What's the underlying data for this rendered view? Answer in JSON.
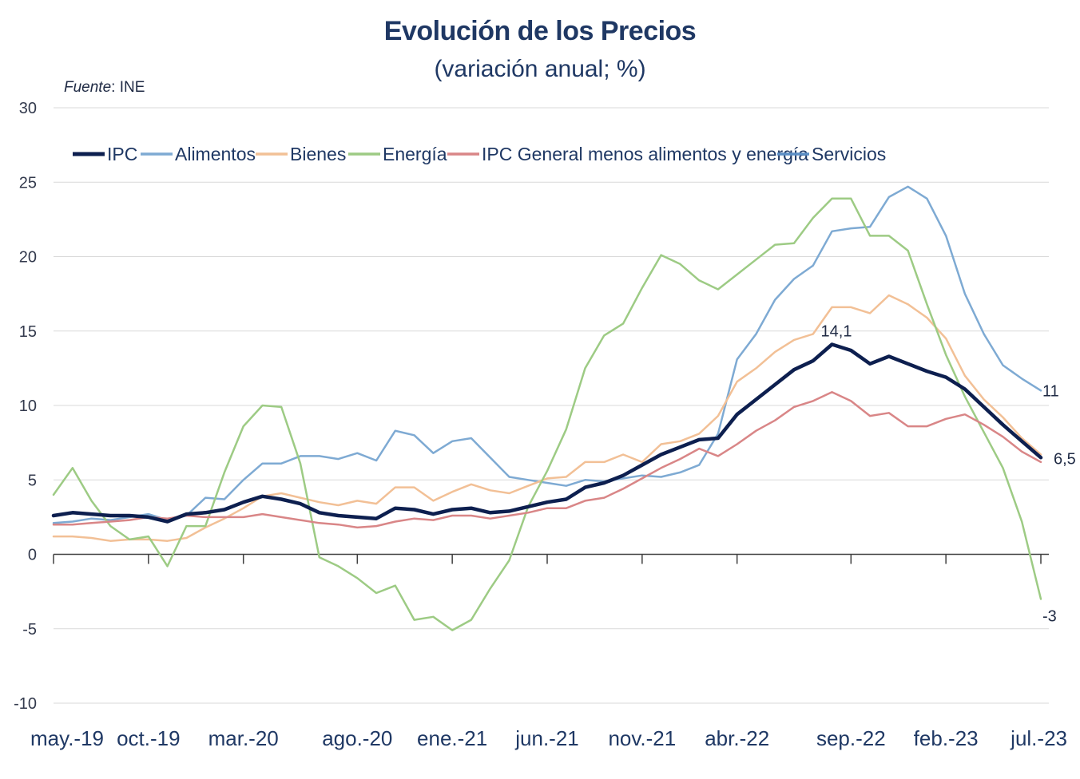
{
  "chart_data": {
    "type": "line",
    "title": "Evolución de los Precios",
    "subtitle": "(variación anual; %)",
    "source_label": "Fuente",
    "source_value": ": INE",
    "ylim": [
      -10,
      30
    ],
    "yticks": [
      -10,
      -5,
      0,
      5,
      10,
      15,
      20,
      25,
      30
    ],
    "grid": true,
    "legend_position": "top",
    "x_tick_labels": [
      "may.-19",
      "oct.-19",
      "mar.-20",
      "ago.-20",
      "ene.-21",
      "jun.-21",
      "nov.-21",
      "abr.-22",
      "sep.-22",
      "feb.-23",
      "jul.-23"
    ],
    "series": [
      {
        "name": "IPC",
        "color": "#0d1f4f",
        "width": 4.5,
        "values": [
          2.6,
          2.8,
          2.7,
          2.6,
          2.6,
          2.5,
          2.2,
          2.7,
          2.8,
          3.0,
          3.5,
          3.9,
          3.7,
          3.4,
          2.8,
          2.6,
          2.5,
          2.4,
          3.1,
          3.0,
          2.7,
          3.0,
          3.1,
          2.8,
          2.9,
          3.2,
          3.5,
          3.7,
          4.5,
          4.8,
          5.3,
          6.0,
          6.7,
          7.2,
          7.7,
          7.8,
          9.4,
          10.4,
          11.4,
          12.4,
          13.0,
          14.1,
          13.7,
          12.8,
          13.3,
          12.8,
          12.3,
          11.9,
          11.1,
          9.9,
          8.7,
          7.6,
          6.5
        ]
      },
      {
        "name": "Alimentos",
        "color": "#7eaad3",
        "width": 2.5,
        "values": [
          2.1,
          2.2,
          2.4,
          2.3,
          2.5,
          2.7,
          2.3,
          2.6,
          3.8,
          3.7,
          5.0,
          6.1,
          6.1,
          6.6,
          6.6,
          6.4,
          6.8,
          6.3,
          8.3,
          8.0,
          6.8,
          7.6,
          7.8,
          6.5,
          5.2,
          5.0,
          4.8,
          4.6,
          5.0,
          4.9,
          5.1,
          5.3,
          5.2,
          5.5,
          6.0,
          8.1,
          13.1,
          14.8,
          17.1,
          18.5,
          19.4,
          21.7,
          21.9,
          22.0,
          24.0,
          24.7,
          23.9,
          21.4,
          17.5,
          14.8,
          12.7,
          11.8,
          11.0
        ]
      },
      {
        "name": "Bienes",
        "color": "#f2c096",
        "width": 2.5,
        "values": [
          1.2,
          1.2,
          1.1,
          0.9,
          1.0,
          1.0,
          0.9,
          1.1,
          1.8,
          2.4,
          3.1,
          3.9,
          4.1,
          3.8,
          3.5,
          3.3,
          3.6,
          3.4,
          4.5,
          4.5,
          3.6,
          4.2,
          4.7,
          4.3,
          4.1,
          4.6,
          5.1,
          5.2,
          6.2,
          6.2,
          6.7,
          6.2,
          7.4,
          7.6,
          8.1,
          9.3,
          11.6,
          12.5,
          13.6,
          14.4,
          14.8,
          16.6,
          16.6,
          16.2,
          17.4,
          16.8,
          15.9,
          14.5,
          12.0,
          10.4,
          9.2,
          7.8,
          6.7
        ]
      },
      {
        "name": "Energía",
        "color": "#9dcb84",
        "width": 2.5,
        "values": [
          4.0,
          5.8,
          3.6,
          1.9,
          1.0,
          1.2,
          -0.8,
          1.9,
          1.9,
          5.5,
          8.6,
          10.0,
          9.9,
          6.1,
          -0.2,
          -0.8,
          -1.6,
          -2.6,
          -2.1,
          -4.4,
          -4.2,
          -5.1,
          -4.4,
          -2.3,
          -0.4,
          3.2,
          5.6,
          8.4,
          12.5,
          14.7,
          15.5,
          17.9,
          20.1,
          19.5,
          18.4,
          17.8,
          18.8,
          19.8,
          20.8,
          20.9,
          22.6,
          23.9,
          23.9,
          21.4,
          21.4,
          20.4,
          16.8,
          13.4,
          10.6,
          8.2,
          5.8,
          2.2,
          -3.0
        ]
      },
      {
        "name": "IPC General menos alimentos y energía",
        "color": "#d98687",
        "width": 2.5,
        "values": [
          2.0,
          2.0,
          2.1,
          2.2,
          2.3,
          2.5,
          2.4,
          2.6,
          2.5,
          2.5,
          2.5,
          2.7,
          2.5,
          2.3,
          2.1,
          2.0,
          1.8,
          1.9,
          2.2,
          2.4,
          2.3,
          2.6,
          2.6,
          2.4,
          2.6,
          2.8,
          3.1,
          3.1,
          3.6,
          3.8,
          4.4,
          5.1,
          5.8,
          6.4,
          7.1,
          6.6,
          7.4,
          8.3,
          9.0,
          9.9,
          10.3,
          10.9,
          10.3,
          9.3,
          9.5,
          8.6,
          8.6,
          9.1,
          9.4,
          8.7,
          7.9,
          6.9,
          6.2
        ]
      },
      {
        "name": "Servicios",
        "color": "#5b8ec5",
        "width": 2.5,
        "values": []
      }
    ],
    "annotations": [
      {
        "label": "14,1",
        "series": "IPC",
        "index": 41
      },
      {
        "label": "11",
        "series": "Alimentos",
        "index": 52
      },
      {
        "label": "6,5",
        "series": "IPC",
        "index": 52
      },
      {
        "label": "-3",
        "series": "Energía",
        "index": 52
      }
    ]
  }
}
